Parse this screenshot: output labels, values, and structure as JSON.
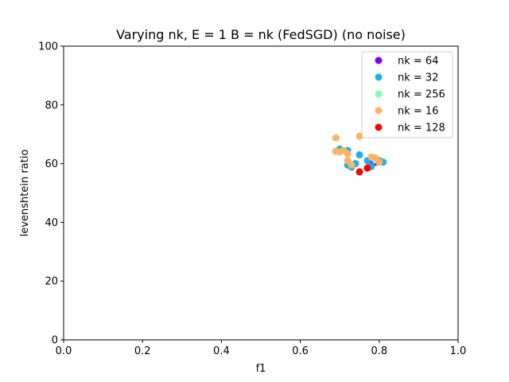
{
  "chart_data": {
    "type": "scatter",
    "title": "Varying nk, E = 1 B = nk (FedSGD) (no noise)",
    "xlabel": "f1",
    "ylabel": "levenshtein ratio",
    "xlim": [
      0,
      1
    ],
    "ylim": [
      0,
      100
    ],
    "xticks": [
      "0.0",
      "0.2",
      "0.4",
      "0.6",
      "0.8",
      "1.0"
    ],
    "yticks": [
      "0",
      "20",
      "40",
      "60",
      "80",
      "100"
    ],
    "legend_position": "top-right",
    "grid": false,
    "series": [
      {
        "name": "nk = 64",
        "color": "#8000ff",
        "points": [
          [
            0.78,
            59.8
          ],
          [
            0.79,
            60.5
          ]
        ]
      },
      {
        "name": "nk = 32",
        "color": "#1cb2e8",
        "points": [
          [
            0.7,
            65.0
          ],
          [
            0.72,
            64.5
          ],
          [
            0.75,
            63.0
          ],
          [
            0.73,
            58.8
          ],
          [
            0.74,
            60.0
          ],
          [
            0.77,
            61.0
          ],
          [
            0.78,
            59.0
          ],
          [
            0.81,
            60.5
          ],
          [
            0.8,
            61.0
          ],
          [
            0.72,
            59.5
          ]
        ]
      },
      {
        "name": "nk = 256",
        "color": "#80ffb4",
        "points": [
          [
            0.79,
            61.2
          ]
        ]
      },
      {
        "name": "nk = 16",
        "color": "#ffb360",
        "points": [
          [
            0.69,
            68.8
          ],
          [
            0.75,
            69.3
          ],
          [
            0.69,
            64.2
          ],
          [
            0.7,
            64.0
          ],
          [
            0.71,
            64.5
          ],
          [
            0.72,
            63.3
          ],
          [
            0.72,
            61.0
          ],
          [
            0.78,
            62.2
          ],
          [
            0.79,
            62.0
          ],
          [
            0.8,
            60.5
          ],
          [
            0.73,
            59.5
          ]
        ]
      },
      {
        "name": "nk = 128",
        "color": "#ff0000",
        "points": [
          [
            0.75,
            57.2
          ],
          [
            0.77,
            58.5
          ]
        ]
      }
    ]
  }
}
